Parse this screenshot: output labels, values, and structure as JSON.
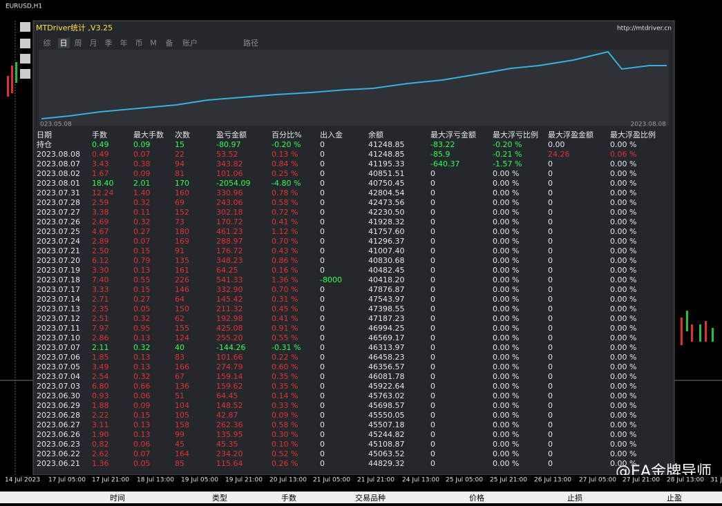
{
  "window": {
    "title": "EURUSD,H1"
  },
  "panel": {
    "title": "MTDriver统计 ,V3.25",
    "url": "http://mtdriver.cn",
    "tabs": [
      "综",
      "日",
      "周",
      "月",
      "季",
      "年",
      "币",
      "M",
      "备",
      "账户",
      "路径"
    ],
    "chart": {
      "start_label": "023.05.08",
      "end_label": "2023.08.08"
    }
  },
  "table": {
    "headers": [
      "日期",
      "手数",
      "最大手数",
      "次数",
      "盈亏金额",
      "百分比%",
      "出入金",
      "余额",
      "最大浮亏金额",
      "最大浮亏比例",
      "最大浮盈金额",
      "最大浮盈比例"
    ],
    "rows": [
      [
        "持仓",
        "0.49",
        "0.09",
        "15",
        "-80.97",
        "-0.20 %",
        "0",
        "41248.85",
        "-83.22",
        "-0.20 %",
        "0.00",
        "0.00 %"
      ],
      [
        "2023.08.08",
        "0.49",
        "0.07",
        "22",
        "53.52",
        "0.13 %",
        "0",
        "41248.85",
        "-85.9",
        "-0.21 %",
        "24.26",
        "0.06 %"
      ],
      [
        "2023.08.07",
        "3.43",
        "0.38",
        "94",
        "343.82",
        "0.84 %",
        "0",
        "41195.33",
        "-640.37",
        "-1.57 %",
        "0",
        "0.00 %"
      ],
      [
        "2023.08.02",
        "1.67",
        "0.09",
        "81",
        "101.06",
        "0.25 %",
        "0",
        "40851.51",
        "0",
        "0.00 %",
        "0",
        "0.00 %"
      ],
      [
        "2023.08.01",
        "18.40",
        "2.01",
        "170",
        "-2054.09",
        "-4.80 %",
        "0",
        "40750.45",
        "0",
        "0.00 %",
        "0",
        "0.00 %"
      ],
      [
        "2023.07.31",
        "12.24",
        "1.40",
        "160",
        "330.96",
        "0.78 %",
        "0",
        "42804.54",
        "0",
        "0.00 %",
        "0",
        "0.00 %"
      ],
      [
        "2023.07.28",
        "2.59",
        "0.32",
        "69",
        "243.06",
        "0.58 %",
        "0",
        "42473.56",
        "0",
        "0.00 %",
        "0",
        "0.00 %"
      ],
      [
        "2023.07.27",
        "3.38",
        "0.11",
        "152",
        "302.18",
        "0.72 %",
        "0",
        "42230.50",
        "0",
        "0.00 %",
        "0",
        "0.00 %"
      ],
      [
        "2023.07.26",
        "2.69",
        "0.32",
        "73",
        "170.72",
        "0.41 %",
        "0",
        "41928.32",
        "0",
        "0.00 %",
        "0",
        "0.00 %"
      ],
      [
        "2023.07.25",
        "4.67",
        "0.27",
        "180",
        "461.23",
        "1.12 %",
        "0",
        "41757.60",
        "0",
        "0.00 %",
        "0",
        "0.00 %"
      ],
      [
        "2023.07.24",
        "2.89",
        "0.07",
        "169",
        "288.97",
        "0.70 %",
        "0",
        "41296.37",
        "0",
        "0.00 %",
        "0",
        "0.00 %"
      ],
      [
        "2023.07.21",
        "2.50",
        "0.15",
        "91",
        "176.72",
        "0.43 %",
        "0",
        "41007.40",
        "0",
        "0.00 %",
        "0",
        "0.00 %"
      ],
      [
        "2023.07.20",
        "6.12",
        "0.79",
        "135",
        "348.23",
        "0.86 %",
        "0",
        "40830.68",
        "0",
        "0.00 %",
        "0",
        "0.00 %"
      ],
      [
        "2023.07.19",
        "3.30",
        "0.13",
        "161",
        "64.25",
        "0.16 %",
        "0",
        "40482.45",
        "0",
        "0.00 %",
        "0",
        "0.00 %"
      ],
      [
        "2023.07.18",
        "7.40",
        "0.55",
        "226",
        "541.33",
        "1.36 %",
        "-8000",
        "40418.20",
        "0",
        "0.00 %",
        "0",
        "0.00 %"
      ],
      [
        "2023.07.17",
        "3.33",
        "0.15",
        "146",
        "332.90",
        "0.70 %",
        "0",
        "47876.87",
        "0",
        "0.00 %",
        "0",
        "0.00 %"
      ],
      [
        "2023.07.14",
        "2.71",
        "0.27",
        "64",
        "145.42",
        "0.31 %",
        "0",
        "47543.97",
        "0",
        "0.00 %",
        "0",
        "0.00 %"
      ],
      [
        "2023.07.13",
        "2.35",
        "0.05",
        "150",
        "211.32",
        "0.45 %",
        "0",
        "47398.55",
        "0",
        "0.00 %",
        "0",
        "0.00 %"
      ],
      [
        "2023.07.12",
        "2.51",
        "0.32",
        "62",
        "192.98",
        "0.41 %",
        "0",
        "47187.23",
        "0",
        "0.00 %",
        "0",
        "0.00 %"
      ],
      [
        "2023.07.11",
        "7.97",
        "0.95",
        "155",
        "425.08",
        "0.91 %",
        "0",
        "46994.25",
        "0",
        "0.00 %",
        "0",
        "0.00 %"
      ],
      [
        "2023.07.10",
        "2.86",
        "0.13",
        "124",
        "255.20",
        "0.55 %",
        "0",
        "46569.17",
        "0",
        "0.00 %",
        "0",
        "0.00 %"
      ],
      [
        "2023.07.07",
        "2.11",
        "0.32",
        "40",
        "-144.26",
        "-0.31 %",
        "0",
        "46313.97",
        "0",
        "0.00 %",
        "0",
        "0.00 %"
      ],
      [
        "2023.07.06",
        "1.85",
        "0.13",
        "83",
        "101.66",
        "0.22 %",
        "0",
        "46458.23",
        "0",
        "0.00 %",
        "0",
        "0.00 %"
      ],
      [
        "2023.07.05",
        "3.49",
        "0.13",
        "166",
        "274.79",
        "0.60 %",
        "0",
        "46356.57",
        "0",
        "0.00 %",
        "0",
        "0.00 %"
      ],
      [
        "2023.07.04",
        "2.54",
        "0.32",
        "67",
        "159.14",
        "0.35 %",
        "0",
        "46081.78",
        "0",
        "0.00 %",
        "0",
        "0.00 %"
      ],
      [
        "2023.07.03",
        "6.80",
        "0.66",
        "136",
        "159.62",
        "0.35 %",
        "0",
        "45922.64",
        "0",
        "0.00 %",
        "0",
        "0.00 %"
      ],
      [
        "2023.06.30",
        "0.93",
        "0.06",
        "51",
        "64.45",
        "0.14 %",
        "0",
        "45763.02",
        "0",
        "0.00 %",
        "0",
        "0.00 %"
      ],
      [
        "2023.06.29",
        "1.88",
        "0.09",
        "104",
        "148.52",
        "0.33 %",
        "0",
        "45698.57",
        "0",
        "0.00 %",
        "0",
        "0.00 %"
      ],
      [
        "2023.06.28",
        "2.22",
        "0.15",
        "105",
        "42.87",
        "0.09 %",
        "0",
        "45550.05",
        "0",
        "0.00 %",
        "0",
        "0.00 %"
      ],
      [
        "2023.06.27",
        "3.11",
        "0.13",
        "158",
        "262.36",
        "0.58 %",
        "0",
        "45507.18",
        "0",
        "0.00 %",
        "0",
        "0.00 %"
      ],
      [
        "2023.06.26",
        "1.90",
        "0.13",
        "99",
        "135.95",
        "0.30 %",
        "0",
        "45244.82",
        "0",
        "0.00 %",
        "0",
        "0.00 %"
      ],
      [
        "2023.06.23",
        "0.82",
        "0.06",
        "45",
        "45.35",
        "0.10 %",
        "0",
        "45108.87",
        "0",
        "0.00 %",
        "0",
        "0.00 %"
      ],
      [
        "2023.06.22",
        "2.62",
        "0.07",
        "164",
        "234.20",
        "0.52 %",
        "0",
        "45063.52",
        "0",
        "0.00 %",
        "0",
        "0.00 %"
      ],
      [
        "2023.06.21",
        "1.36",
        "0.05",
        "85",
        "115.64",
        "0.26 %",
        "0",
        "44829.32",
        "0",
        "0.00 %",
        "0",
        "0.00 %"
      ]
    ]
  },
  "time_axis": [
    "14 Jul 2023",
    "17 Jul 05:00",
    "17 Jul 21:00",
    "18 Jul 13:00",
    "19 Jul 05:00",
    "19 Jul 21:00",
    "20 Jul 13:00",
    "21 Jul 05:00",
    "21 Jul 21:00",
    "24 Jul 13:00",
    "25 Jul 05:00",
    "25 Jul 21:00",
    "26 Jul 13:00",
    "27 Jul 05:00",
    "27 Jul 21:00",
    "28 Jul 13:00",
    "31 J"
  ],
  "order_headers": [
    "时间",
    "类型",
    "手数",
    "交易品种",
    "价格",
    "止损",
    "止盈"
  ],
  "watermark": "@EA金牌导师"
}
